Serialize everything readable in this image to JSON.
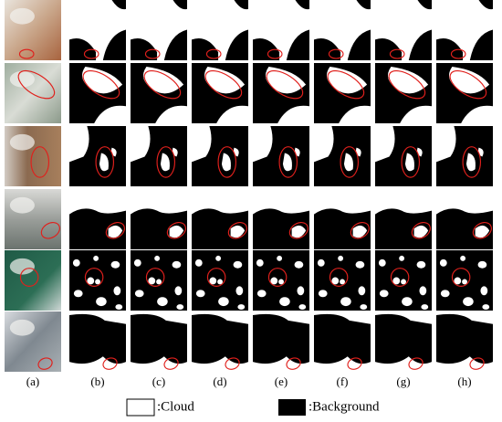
{
  "column_labels": [
    "(a)",
    "(b)",
    "(c)",
    "(d)",
    "(e)",
    "(f)",
    "(g)",
    "(h)"
  ],
  "legend": [
    {
      "label": ":Cloud"
    },
    {
      "label": ":Background"
    }
  ]
}
